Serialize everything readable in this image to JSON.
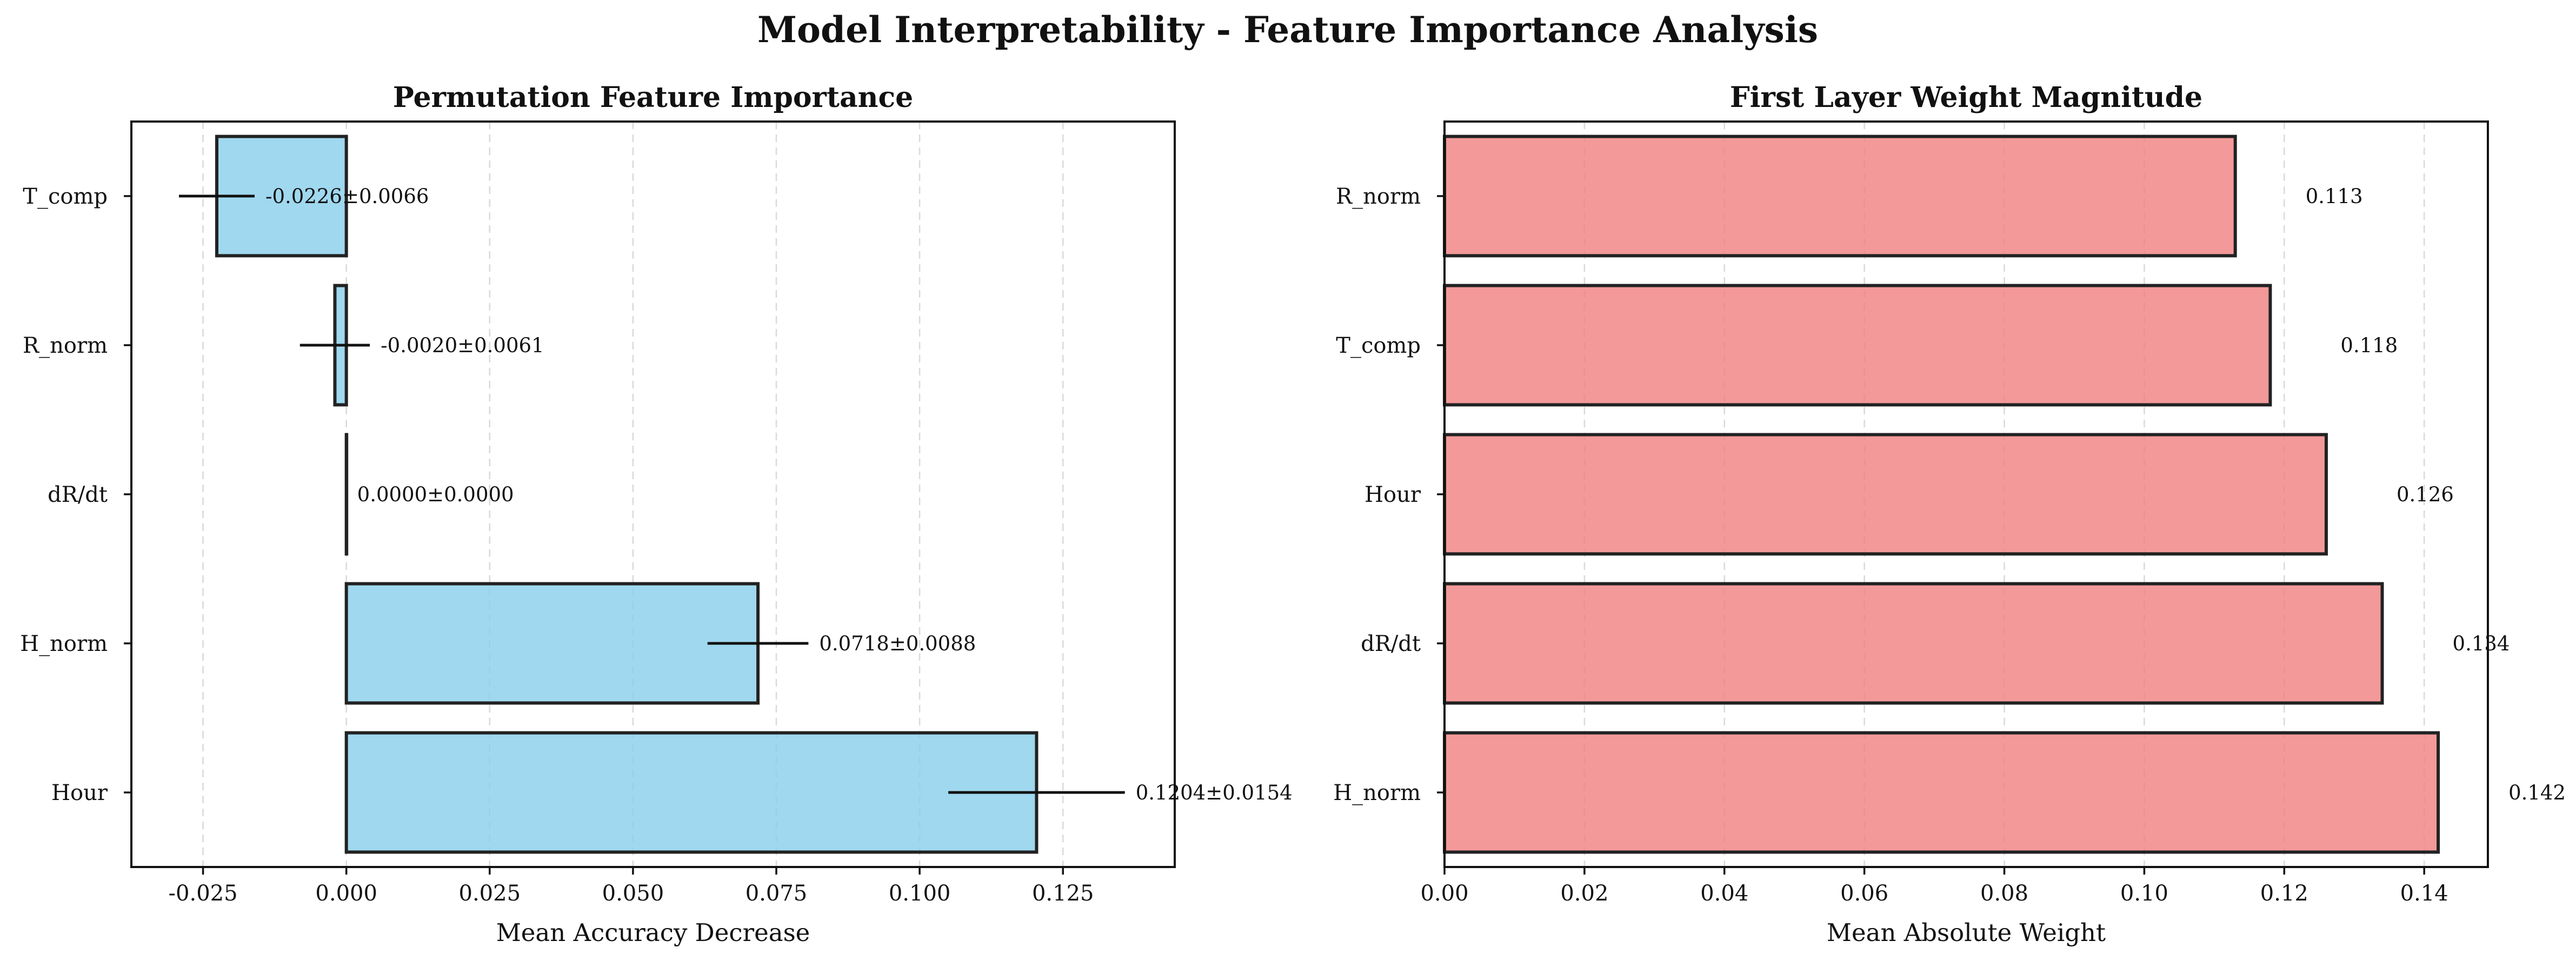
{
  "figure": {
    "suptitle": "Model Interpretability - Feature Importance Analysis"
  },
  "chart_data": [
    {
      "type": "bar",
      "orientation": "horizontal",
      "title": "Permutation Feature Importance",
      "xlabel": "Mean Accuracy Decrease",
      "ylabel": "",
      "categories": [
        "T_comp",
        "R_norm",
        "dR/dt",
        "H_norm",
        "Hour"
      ],
      "values": [
        -0.0226,
        -0.002,
        0.0,
        0.0718,
        0.1204
      ],
      "errors": [
        0.0066,
        0.0061,
        0.0,
        0.0088,
        0.0154
      ],
      "value_labels": [
        "-0.0226±0.0066",
        "-0.0020±0.0061",
        "0.0000±0.0000",
        "0.0718±0.0088",
        "0.1204±0.0154"
      ],
      "xlim": [
        -0.0375,
        0.1445
      ],
      "xticks": [
        -0.025,
        0.0,
        0.025,
        0.05,
        0.075,
        0.1,
        0.125
      ],
      "xtick_labels": [
        "-0.025",
        "0.000",
        "0.025",
        "0.050",
        "0.075",
        "0.100",
        "0.125"
      ],
      "bar_color": "#87CEEB",
      "grid": "x-axis dashed"
    },
    {
      "type": "bar",
      "orientation": "horizontal",
      "title": "First Layer Weight Magnitude",
      "xlabel": "Mean Absolute Weight",
      "ylabel": "",
      "categories": [
        "R_norm",
        "T_comp",
        "Hour",
        "dR/dt",
        "H_norm"
      ],
      "values": [
        0.113,
        0.118,
        0.126,
        0.134,
        0.142
      ],
      "value_labels": [
        "0.113",
        "0.118",
        "0.126",
        "0.134",
        "0.142"
      ],
      "xlim": [
        0.0,
        0.1491
      ],
      "xticks": [
        0.0,
        0.02,
        0.04,
        0.06,
        0.08,
        0.1,
        0.12,
        0.14
      ],
      "xtick_labels": [
        "0.00",
        "0.02",
        "0.04",
        "0.06",
        "0.08",
        "0.10",
        "0.12",
        "0.14"
      ],
      "bar_color": "#F08080",
      "grid": "x-axis dashed"
    }
  ]
}
